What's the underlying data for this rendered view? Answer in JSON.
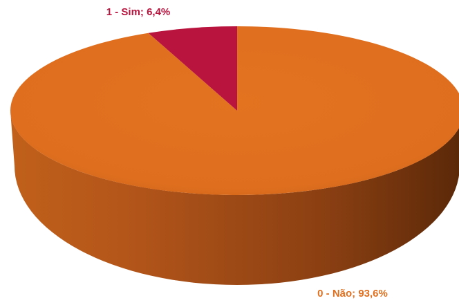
{
  "chart_data": {
    "type": "pie",
    "values": [
      93.6,
      6.4
    ],
    "value_labels": [
      "0 - Não; 93,6%",
      "1 - Sim; 6,4%"
    ],
    "colors": [
      "#e07020",
      "#b8143e"
    ]
  }
}
